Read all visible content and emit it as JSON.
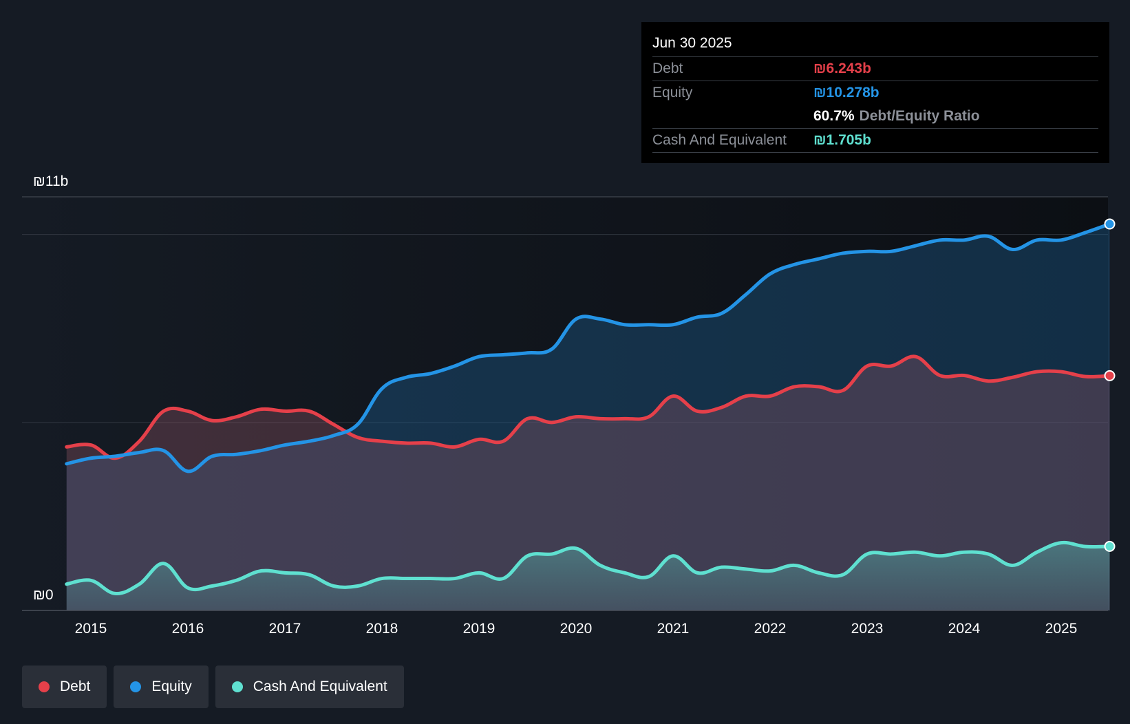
{
  "tooltip": {
    "date": "Jun 30 2025",
    "debt_label": "Debt",
    "debt_value": "₪6.243b",
    "equity_label": "Equity",
    "equity_value": "₪10.278b",
    "ratio_value": "60.7%",
    "ratio_label": "Debt/Equity Ratio",
    "cash_label": "Cash And Equivalent",
    "cash_value": "₪1.705b"
  },
  "legend": [
    {
      "label": "Debt",
      "color": "#e5404a"
    },
    {
      "label": "Equity",
      "color": "#2494e6"
    },
    {
      "label": "Cash And Equivalent",
      "color": "#5fe0d0"
    }
  ],
  "colors": {
    "debt": "#e5404a",
    "equity": "#2494e6",
    "cash": "#5fe0d0",
    "background": "#151b24"
  },
  "chart_data": {
    "type": "area",
    "title": "",
    "xlabel": "",
    "ylabel": "",
    "ylim": [
      0,
      11
    ],
    "y_axis_labels": [
      "₪11b",
      "₪0"
    ],
    "x_ticks": [
      2015,
      2016,
      2017,
      2018,
      2019,
      2020,
      2021,
      2022,
      2023,
      2024,
      2025
    ],
    "x_tick_labels": [
      "2015",
      "2016",
      "2017",
      "2018",
      "2019",
      "2020",
      "2021",
      "2022",
      "2023",
      "2024",
      "2025"
    ],
    "x_range": [
      2014.25,
      2025.75
    ],
    "series": [
      {
        "name": "Debt",
        "x": [
          2014.75,
          2015.0,
          2015.25,
          2015.5,
          2015.75,
          2016.0,
          2016.25,
          2016.5,
          2016.75,
          2017.0,
          2017.25,
          2017.5,
          2017.75,
          2018.0,
          2018.25,
          2018.5,
          2018.75,
          2019.0,
          2019.25,
          2019.5,
          2019.75,
          2020.0,
          2020.25,
          2020.5,
          2020.75,
          2021.0,
          2021.25,
          2021.5,
          2021.75,
          2022.0,
          2022.25,
          2022.5,
          2022.75,
          2023.0,
          2023.25,
          2023.5,
          2023.75,
          2024.0,
          2024.25,
          2024.5,
          2024.75,
          2025.0,
          2025.25,
          2025.5
        ],
        "values": [
          4.35,
          4.4,
          4.05,
          4.5,
          5.3,
          5.3,
          5.05,
          5.15,
          5.35,
          5.3,
          5.3,
          4.95,
          4.6,
          4.5,
          4.45,
          4.45,
          4.35,
          4.55,
          4.5,
          5.1,
          5.0,
          5.15,
          5.1,
          5.1,
          5.15,
          5.7,
          5.3,
          5.4,
          5.7,
          5.7,
          5.95,
          5.95,
          5.85,
          6.5,
          6.5,
          6.75,
          6.25,
          6.25,
          6.1,
          6.2,
          6.35,
          6.35,
          6.22,
          6.243
        ]
      },
      {
        "name": "Equity",
        "x": [
          2014.75,
          2015.0,
          2015.25,
          2015.5,
          2015.75,
          2016.0,
          2016.25,
          2016.5,
          2016.75,
          2017.0,
          2017.25,
          2017.5,
          2017.75,
          2018.0,
          2018.25,
          2018.5,
          2018.75,
          2019.0,
          2019.25,
          2019.5,
          2019.75,
          2020.0,
          2020.25,
          2020.5,
          2020.75,
          2021.0,
          2021.25,
          2021.5,
          2021.75,
          2022.0,
          2022.25,
          2022.5,
          2022.75,
          2023.0,
          2023.25,
          2023.5,
          2023.75,
          2024.0,
          2024.25,
          2024.5,
          2024.75,
          2025.0,
          2025.25,
          2025.5
        ],
        "values": [
          3.9,
          4.05,
          4.1,
          4.2,
          4.25,
          3.7,
          4.1,
          4.15,
          4.25,
          4.4,
          4.5,
          4.65,
          4.95,
          5.9,
          6.2,
          6.3,
          6.5,
          6.75,
          6.8,
          6.85,
          6.95,
          7.75,
          7.75,
          7.6,
          7.6,
          7.6,
          7.8,
          7.9,
          8.4,
          8.95,
          9.2,
          9.35,
          9.5,
          9.55,
          9.55,
          9.7,
          9.85,
          9.85,
          9.95,
          9.6,
          9.85,
          9.85,
          10.05,
          10.278
        ]
      },
      {
        "name": "Cash And Equivalent",
        "x": [
          2014.75,
          2015.0,
          2015.25,
          2015.5,
          2015.75,
          2016.0,
          2016.25,
          2016.5,
          2016.75,
          2017.0,
          2017.25,
          2017.5,
          2017.75,
          2018.0,
          2018.25,
          2018.5,
          2018.75,
          2019.0,
          2019.25,
          2019.5,
          2019.75,
          2020.0,
          2020.25,
          2020.5,
          2020.75,
          2021.0,
          2021.25,
          2021.5,
          2021.75,
          2022.0,
          2022.25,
          2022.5,
          2022.75,
          2023.0,
          2023.25,
          2023.5,
          2023.75,
          2024.0,
          2024.25,
          2024.5,
          2024.75,
          2025.0,
          2025.25,
          2025.5
        ],
        "values": [
          0.7,
          0.8,
          0.45,
          0.7,
          1.25,
          0.6,
          0.65,
          0.8,
          1.05,
          1.0,
          0.95,
          0.65,
          0.65,
          0.85,
          0.85,
          0.85,
          0.85,
          1.0,
          0.85,
          1.45,
          1.5,
          1.65,
          1.2,
          1.0,
          0.9,
          1.45,
          1.0,
          1.15,
          1.1,
          1.05,
          1.2,
          1.0,
          0.95,
          1.5,
          1.5,
          1.55,
          1.45,
          1.55,
          1.5,
          1.2,
          1.55,
          1.8,
          1.7,
          1.705
        ]
      }
    ]
  }
}
